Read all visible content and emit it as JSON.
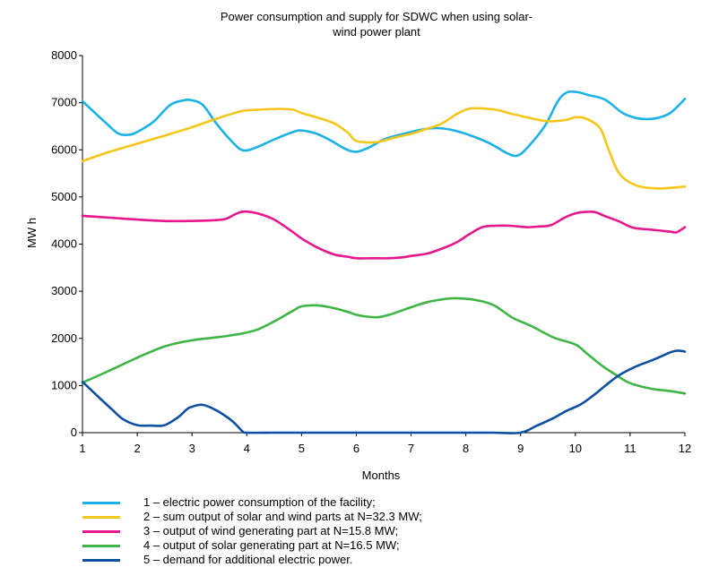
{
  "chart_data": {
    "type": "line",
    "title_line1": "Power consumption and supply for SDWC when using solar-",
    "title_line2": "wind power plant",
    "xlabel": "Months",
    "ylabel": "MW h",
    "ylim": [
      0,
      8000
    ],
    "yticks": [
      0,
      1000,
      2000,
      3000,
      4000,
      5000,
      6000,
      7000,
      8000
    ],
    "xticks": [
      1,
      2,
      3,
      4,
      5,
      6,
      7,
      8,
      9,
      10,
      11,
      12
    ],
    "grid": false,
    "legend_placement": "bottom",
    "series": [
      {
        "name": "1 – electric power consumption of the facility;",
        "color": "#1ab1e6",
        "x": [
          1,
          1.4,
          1.65,
          1.85,
          2,
          2.3,
          2.6,
          2.85,
          3,
          3.2,
          3.45,
          3.75,
          3.93,
          4.15,
          4.5,
          4.85,
          5,
          5.25,
          5.5,
          5.8,
          6,
          6.25,
          6.5,
          6.8,
          7.15,
          7.45,
          7.75,
          8.1,
          8.45,
          8.75,
          8.95,
          9.15,
          9.45,
          9.68,
          9.85,
          10.05,
          10.25,
          10.55,
          10.9,
          11.3,
          11.7,
          12
        ],
        "y": [
          7030,
          6600,
          6350,
          6320,
          6380,
          6600,
          6950,
          7050,
          7050,
          6950,
          6550,
          6150,
          5990,
          6040,
          6220,
          6380,
          6410,
          6350,
          6220,
          6020,
          5960,
          6060,
          6220,
          6320,
          6420,
          6460,
          6420,
          6300,
          6130,
          5930,
          5880,
          6080,
          6520,
          7030,
          7220,
          7220,
          7160,
          7060,
          6760,
          6650,
          6760,
          7080
        ]
      },
      {
        "name": "2 – sum output of solar and wind parts at N=32.3 MW;",
        "color": "#f5c518",
        "x": [
          1,
          1.5,
          2,
          2.5,
          3,
          3.5,
          3.9,
          4.2,
          4.6,
          4.85,
          5,
          5.3,
          5.6,
          5.85,
          6,
          6.35,
          6.7,
          7,
          7.3,
          7.55,
          7.85,
          8.05,
          8.25,
          8.55,
          8.85,
          9.15,
          9.45,
          9.65,
          9.85,
          10,
          10.2,
          10.45,
          10.6,
          10.8,
          11.1,
          11.5,
          12
        ],
        "y": [
          5760,
          5960,
          6130,
          6300,
          6480,
          6680,
          6820,
          6850,
          6870,
          6850,
          6780,
          6680,
          6560,
          6360,
          6190,
          6160,
          6260,
          6340,
          6450,
          6550,
          6770,
          6870,
          6880,
          6850,
          6760,
          6680,
          6610,
          6610,
          6640,
          6690,
          6660,
          6460,
          6030,
          5500,
          5250,
          5180,
          5220
        ]
      },
      {
        "name": "3 – output of wind generating part at N=15.8 MW;",
        "color": "#e6168c",
        "x": [
          1,
          1.5,
          2,
          2.5,
          3,
          3.3,
          3.6,
          3.8,
          3.95,
          4.2,
          4.5,
          4.8,
          5,
          5.3,
          5.6,
          5.85,
          6,
          6.3,
          6.6,
          6.85,
          7,
          7.3,
          7.6,
          7.85,
          8.05,
          8.3,
          8.55,
          8.8,
          9.1,
          9.3,
          9.55,
          9.8,
          10,
          10.15,
          10.35,
          10.55,
          10.8,
          11.05,
          11.35,
          11.6,
          11.75,
          11.85,
          12
        ],
        "y": [
          4600,
          4560,
          4520,
          4490,
          4490,
          4500,
          4530,
          4640,
          4690,
          4650,
          4520,
          4290,
          4120,
          3920,
          3780,
          3730,
          3700,
          3700,
          3700,
          3720,
          3750,
          3800,
          3920,
          4050,
          4200,
          4360,
          4390,
          4390,
          4360,
          4370,
          4400,
          4560,
          4650,
          4680,
          4680,
          4590,
          4480,
          4350,
          4310,
          4280,
          4260,
          4250,
          4360
        ]
      },
      {
        "name": "4 – output of solar generating part at N=16.5 MW;",
        "color": "#3db545",
        "x": [
          1,
          1.5,
          2,
          2.5,
          3,
          3.5,
          3.9,
          4.2,
          4.5,
          4.85,
          5,
          5.3,
          5.6,
          5.85,
          6,
          6.2,
          6.4,
          6.6,
          7,
          7.3,
          7.65,
          7.85,
          8.15,
          8.5,
          8.85,
          9.2,
          9.6,
          10,
          10.2,
          10.5,
          10.75,
          11,
          11.4,
          11.75,
          12
        ],
        "y": [
          1060,
          1320,
          1590,
          1830,
          1960,
          2030,
          2100,
          2190,
          2360,
          2590,
          2680,
          2700,
          2640,
          2560,
          2500,
          2460,
          2450,
          2500,
          2660,
          2770,
          2840,
          2850,
          2820,
          2710,
          2440,
          2260,
          2020,
          1870,
          1690,
          1410,
          1220,
          1050,
          930,
          880,
          830
        ]
      },
      {
        "name": "5  – demand for additional electric power.",
        "color": "#0d4fa3",
        "x": [
          1,
          1.3,
          1.55,
          1.75,
          2,
          2.25,
          2.5,
          2.75,
          2.9,
          3,
          3.2,
          3.45,
          3.7,
          3.82,
          3.92,
          4,
          4.5,
          5,
          5.5,
          6,
          6.5,
          7,
          7.5,
          8,
          8.5,
          9,
          9.3,
          9.6,
          9.85,
          10.1,
          10.35,
          10.55,
          10.8,
          11.1,
          11.45,
          11.75,
          11.88,
          12
        ],
        "y": [
          1080,
          750,
          480,
          280,
          160,
          150,
          160,
          330,
          490,
          550,
          590,
          470,
          280,
          150,
          30,
          0,
          0,
          0,
          0,
          0,
          0,
          0,
          0,
          0,
          0,
          0,
          150,
          310,
          470,
          600,
          810,
          1000,
          1220,
          1400,
          1560,
          1710,
          1740,
          1720
        ]
      }
    ]
  }
}
